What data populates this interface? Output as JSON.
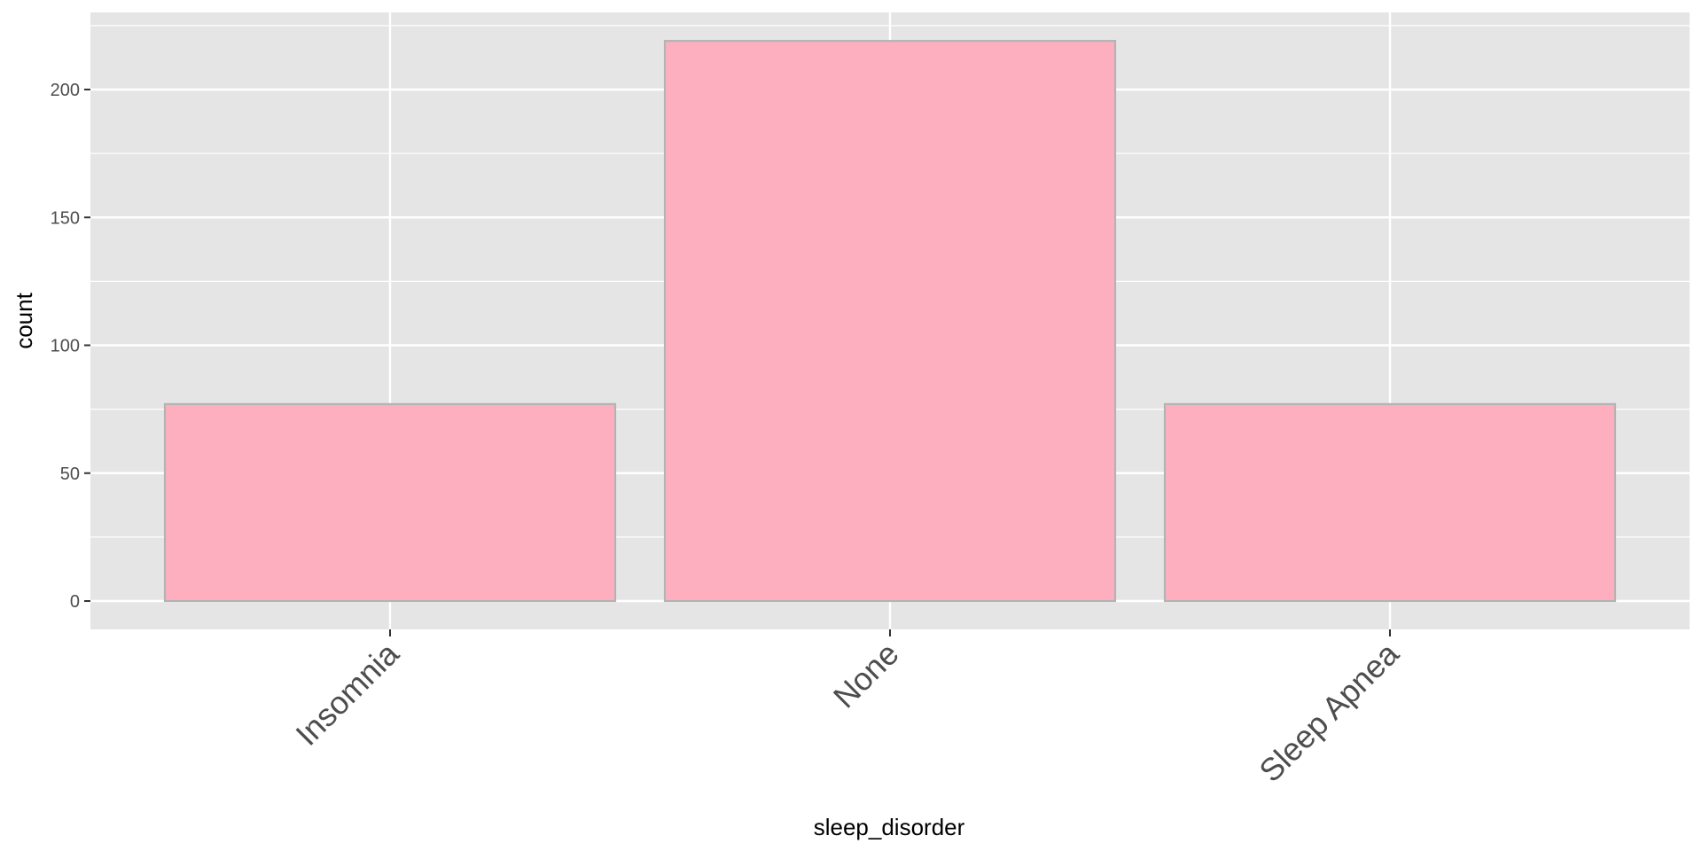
{
  "chart_data": {
    "type": "bar",
    "categories": [
      "Insomnia",
      "None",
      "Sleep Apnea"
    ],
    "values": [
      77,
      219,
      77
    ],
    "title": "",
    "xlabel": "sleep_disorder",
    "ylabel": "count",
    "ylim": [
      -11,
      230
    ],
    "yticks": [
      0,
      50,
      100,
      150,
      200
    ],
    "grid": true,
    "legend": "none"
  },
  "colors": {
    "panel_background": "#e5e5e5",
    "grid_line": "#ffffff",
    "bar_fill": "#fdafc0",
    "bar_stroke": "#b3b3b3",
    "tick_text": "#4d4d4d",
    "axis_title_text": "#000000"
  }
}
